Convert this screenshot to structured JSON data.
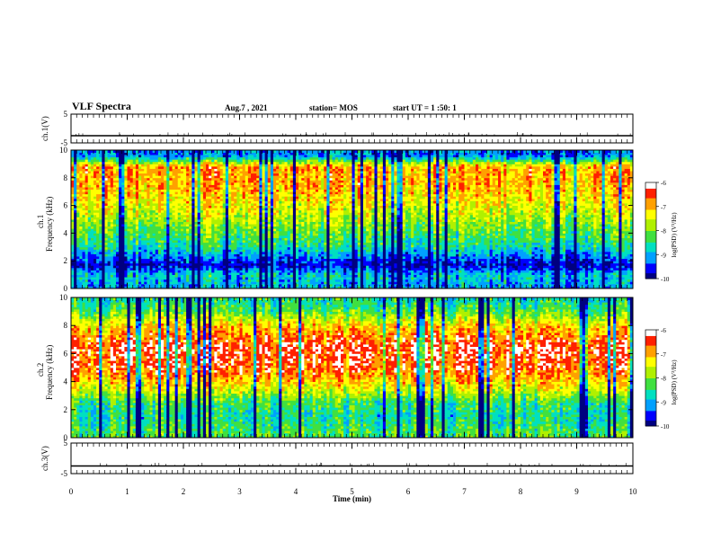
{
  "header": {
    "title": "VLF Spectra",
    "date": "Aug.7 , 2021",
    "station": "station= MOS",
    "start": "start UT = 1 :50: 1"
  },
  "colors": {
    "scale": [
      "#000080",
      "#0000ff",
      "#00a0ff",
      "#00e0c0",
      "#40e040",
      "#b0f000",
      "#ffff00",
      "#ffa000",
      "#ff2000",
      "#ffffff"
    ]
  },
  "chart_data": [
    {
      "type": "line",
      "panel": "ch1-voltage",
      "ylabel": "ch.1(V)",
      "ylim": [
        -5,
        5
      ],
      "yticks": [
        "5",
        "-5"
      ],
      "series": [
        {
          "values": [
            -2.5,
            -2.5
          ]
        }
      ],
      "x": [
        0,
        10
      ]
    },
    {
      "type": "heatmap",
      "panel": "ch1-spectrogram",
      "ylabel_top": "ch.1",
      "ylabel": "Frequency (kHz)",
      "ylim": [
        0,
        10
      ],
      "yticks": [
        "0",
        "2",
        "4",
        "6",
        "8",
        "10"
      ],
      "colorbar_label": "log(PSD) (V²/Hz)",
      "colorbar_ticks": [
        "-6",
        "-7",
        "-8",
        "-9",
        "-10"
      ],
      "intensity_by_freq": [
        {
          "f": 0.3,
          "level": -9.0
        },
        {
          "f": 1.0,
          "level": -8.8
        },
        {
          "f": 1.7,
          "level": -9.8
        },
        {
          "f": 3.0,
          "level": -8.6
        },
        {
          "f": 4.5,
          "level": -8.0
        },
        {
          "f": 6.0,
          "level": -7.4
        },
        {
          "f": 7.5,
          "level": -7.0
        },
        {
          "f": 8.8,
          "level": -6.9
        },
        {
          "f": 9.6,
          "level": -9.2
        }
      ]
    },
    {
      "type": "heatmap",
      "panel": "ch2-spectrogram",
      "ylabel_top": "ch.2",
      "ylabel": "Frequency (kHz)",
      "ylim": [
        0,
        10
      ],
      "yticks": [
        "0",
        "2",
        "4",
        "6",
        "8",
        "10"
      ],
      "colorbar_label": "log(PSD) (V²/Hz)",
      "colorbar_ticks": [
        "-6",
        "-7",
        "-8",
        "-9",
        "-10"
      ],
      "intensity_by_freq": [
        {
          "f": 0.5,
          "level": -8.3
        },
        {
          "f": 1.5,
          "level": -8.6
        },
        {
          "f": 2.5,
          "level": -8.4
        },
        {
          "f": 3.5,
          "level": -7.5
        },
        {
          "f": 5.0,
          "level": -6.6
        },
        {
          "f": 6.5,
          "level": -6.4
        },
        {
          "f": 8.0,
          "level": -7.2
        },
        {
          "f": 9.0,
          "level": -8.2
        },
        {
          "f": 9.8,
          "level": -8.6
        }
      ]
    },
    {
      "type": "line",
      "panel": "ch3-voltage",
      "ylabel": "ch.3(V)",
      "ylim": [
        -5,
        5
      ],
      "yticks": [
        "5",
        "-5"
      ],
      "series": [
        {
          "values": [
            -2.5,
            -2.5
          ]
        }
      ],
      "x": [
        0,
        10
      ]
    }
  ],
  "xaxis": {
    "label": "Time (min)",
    "ticks": [
      "0",
      "1",
      "2",
      "3",
      "4",
      "5",
      "6",
      "7",
      "8",
      "9",
      "10"
    ],
    "xlim": [
      0,
      10
    ]
  }
}
